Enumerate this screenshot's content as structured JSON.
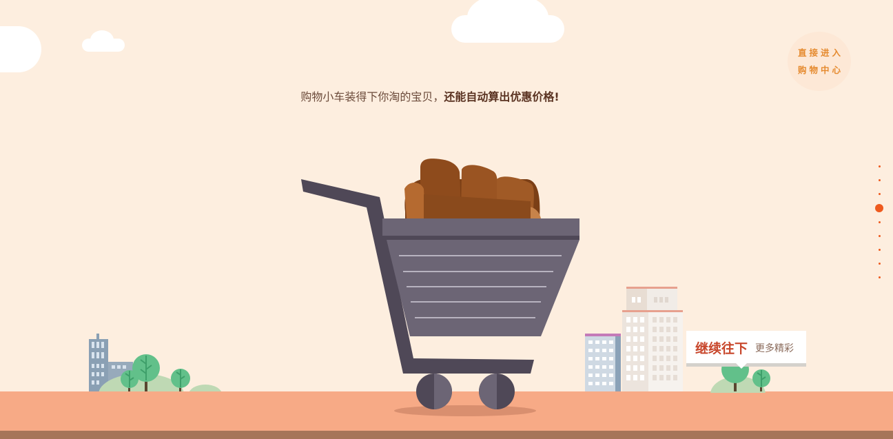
{
  "headline": {
    "normal": "购物小车装得下你淘的宝贝，",
    "bold": "还能自动算出优惠价格!"
  },
  "enter": {
    "line1": "直接进入",
    "line2": "购物中心"
  },
  "continue": {
    "main": "继续往下",
    "sub": "更多精彩"
  },
  "nav": {
    "total_dots": 9,
    "active_index": 3
  },
  "colors": {
    "background": "#fdeedf",
    "ground": "#f7aa86",
    "accent": "#ee5a1e",
    "cart": "#6c6575",
    "cart_dark": "#4f4857"
  },
  "icons": [
    "shopping-cart-icon",
    "sofa-icon",
    "cloud-icon",
    "tree-icon",
    "building-icon"
  ]
}
